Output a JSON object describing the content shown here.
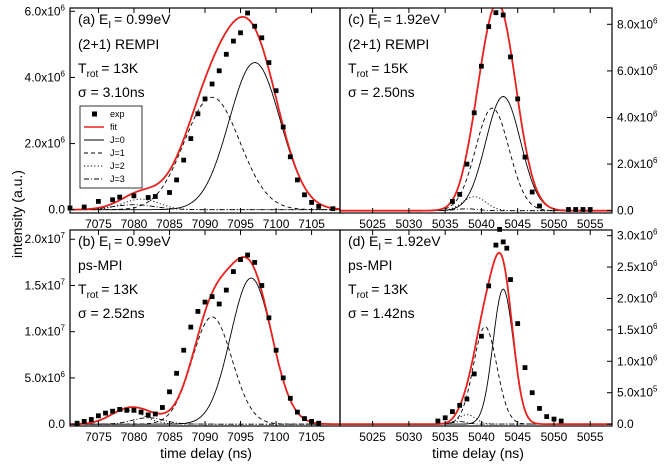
{
  "figure": {
    "xlabel": "time delay (ns)",
    "ylabel": "intensity (a.u.)"
  },
  "legend": {
    "items": [
      {
        "label": "exp",
        "style": "square"
      },
      {
        "label": "fit",
        "style": "red"
      },
      {
        "label": "J=0",
        "style": "solid"
      },
      {
        "label": "J=1",
        "style": "dash"
      },
      {
        "label": "J=2",
        "style": "dot"
      },
      {
        "label": "J=3",
        "style": "dashdot"
      }
    ]
  },
  "colors": {
    "fit": "#e8211d",
    "component": "#000000",
    "exp": "#000000"
  },
  "chart_data": [
    {
      "type": "scatter",
      "panel": "a",
      "annotations": [
        "(a) E",
        "= 0.99eV",
        "(2+1) REMPI",
        "T",
        "= 13K",
        "σ = 3.10ns"
      ],
      "subscripts": [
        "I",
        "rot"
      ],
      "xlim": [
        7071,
        7109
      ],
      "ylim": [
        -100000,
        6100000
      ],
      "xticks": [
        7075,
        7080,
        7085,
        7090,
        7095,
        7100,
        7105
      ],
      "xtick_labels": [
        "7075",
        "7080",
        "7085",
        "7090",
        "7095",
        "7100",
        "7105"
      ],
      "yticks": [
        0,
        2000000,
        4000000,
        6000000
      ],
      "ytick_labels": [
        "0.0",
        "2.0x10",
        "4.0x10",
        "6.0x10"
      ],
      "ytick_exp": [
        "",
        "6",
        "6",
        "6"
      ],
      "yaxis_side": "left",
      "show_x_labels": false,
      "legend": true,
      "components": [
        {
          "name": "J=0",
          "style": "solid",
          "mu": 7097.0,
          "sigma": 3.6,
          "amp": 4450000
        },
        {
          "name": "J=1",
          "style": "dash",
          "mu": 7091.0,
          "sigma": 3.9,
          "amp": 3400000
        },
        {
          "name": "J=2",
          "style": "dot",
          "mu": 7081.0,
          "sigma": 2.5,
          "amp": 320000
        },
        {
          "name": "J=3",
          "style": "dashdot",
          "mu": 7080.0,
          "sigma": 3.0,
          "amp": 150000
        }
      ],
      "exp_x": [
        7071,
        7073,
        7075,
        7077,
        7078,
        7080,
        7082,
        7083,
        7085,
        7086,
        7087,
        7088,
        7089,
        7090,
        7091,
        7092,
        7093,
        7094,
        7095,
        7096,
        7097,
        7098,
        7099,
        7100,
        7101,
        7102,
        7103,
        7104,
        7105,
        7106,
        7108
      ],
      "exp_y": [
        50000,
        80000,
        250000,
        300000,
        380000,
        420000,
        370000,
        400000,
        520000,
        900000,
        1500000,
        2150000,
        2900000,
        3350000,
        3800000,
        4200000,
        4700000,
        5100000,
        5350000,
        5950000,
        5550000,
        5200000,
        4450000,
        3600000,
        2500000,
        1600000,
        900000,
        450000,
        220000,
        100000,
        30000
      ]
    },
    {
      "type": "scatter",
      "panel": "b",
      "annotations": [
        "(b) E",
        "= 0.99eV",
        "ps-MPI",
        "T",
        "= 13K",
        "σ = 2.52ns"
      ],
      "subscripts": [
        "I",
        "rot"
      ],
      "xlim": [
        7071,
        7109
      ],
      "ylim": [
        -200000,
        21000000
      ],
      "xticks": [
        7075,
        7080,
        7085,
        7090,
        7095,
        7100,
        7105
      ],
      "xtick_labels": [
        "7075",
        "7080",
        "7085",
        "7090",
        "7095",
        "7100",
        "7105"
      ],
      "yticks": [
        0,
        5000000,
        10000000,
        15000000,
        20000000
      ],
      "ytick_labels": [
        "0.0",
        "5.0x10",
        "1.0x10",
        "1.5x10",
        "2.0x10"
      ],
      "ytick_exp": [
        "",
        "6",
        "7",
        "7",
        "7"
      ],
      "yaxis_side": "left",
      "show_x_labels": true,
      "legend": false,
      "components": [
        {
          "name": "J=0",
          "style": "solid",
          "mu": 7096.5,
          "sigma": 2.9,
          "amp": 15800000
        },
        {
          "name": "J=1",
          "style": "dash",
          "mu": 7091.0,
          "sigma": 2.8,
          "amp": 11600000
        },
        {
          "name": "J=2",
          "style": "dot",
          "mu": 7079.0,
          "sigma": 2.4,
          "amp": 1500000
        },
        {
          "name": "J=3",
          "style": "dashdot",
          "mu": 7082.0,
          "sigma": 2.2,
          "amp": 700000
        }
      ],
      "exp_x": [
        7072,
        7073,
        7074,
        7075,
        7076,
        7077,
        7078,
        7079,
        7080,
        7081,
        7082,
        7083,
        7084,
        7085,
        7086,
        7087,
        7088,
        7089,
        7090,
        7091,
        7092,
        7093,
        7094,
        7095,
        7096,
        7097,
        7098,
        7099,
        7100,
        7101,
        7102,
        7103,
        7104,
        7105,
        7106
      ],
      "exp_y": [
        100000,
        300000,
        500000,
        900000,
        1200000,
        1400000,
        1600000,
        1500000,
        1500000,
        1300000,
        1000000,
        1100000,
        1800000,
        3500000,
        5500000,
        8000000,
        10500000,
        12200000,
        13200000,
        13800000,
        13000000,
        14500000,
        16500000,
        17800000,
        18300000,
        17500000,
        15000000,
        11500000,
        8000000,
        5000000,
        2800000,
        1300000,
        600000,
        300000,
        100000
      ]
    },
    {
      "type": "scatter",
      "panel": "c",
      "annotations": [
        "(c) E",
        "= 1.92eV",
        "(2+1) REMPI",
        "T",
        "= 15K",
        "σ = 2.50ns"
      ],
      "subscripts": [
        "I",
        "rot"
      ],
      "xlim": [
        5020.5,
        5058
      ],
      "ylim": [
        -100000,
        8700000
      ],
      "xticks": [
        5025,
        5030,
        5035,
        5040,
        5045,
        5050,
        5055
      ],
      "xtick_labels": [
        "5025",
        "5030",
        "5035",
        "5040",
        "5045",
        "5050",
        "5055"
      ],
      "yticks": [
        0,
        2000000,
        4000000,
        6000000,
        8000000
      ],
      "ytick_labels": [
        "0.0",
        "2.0x10",
        "4.0x10",
        "6.0x10",
        "8.0x10"
      ],
      "ytick_exp": [
        "",
        "6",
        "6",
        "6",
        "6"
      ],
      "yaxis_side": "right",
      "show_x_labels": false,
      "legend": false,
      "components": [
        {
          "name": "J=0",
          "style": "solid",
          "mu": 5043.0,
          "sigma": 2.4,
          "amp": 4900000
        },
        {
          "name": "J=1",
          "style": "dash",
          "mu": 5041.5,
          "sigma": 2.3,
          "amp": 4400000
        },
        {
          "name": "J=2",
          "style": "dot",
          "mu": 5039.0,
          "sigma": 1.6,
          "amp": 600000
        },
        {
          "name": "J=3",
          "style": "dashdot",
          "mu": 5038.0,
          "sigma": 1.5,
          "amp": 80000
        }
      ],
      "exp_x": [
        5036,
        5037,
        5038,
        5039,
        5040,
        5041,
        5042,
        5043,
        5044,
        5045,
        5046,
        5047,
        5048,
        5052,
        5053,
        5054,
        5055
      ],
      "exp_y": [
        400000,
        700000,
        2000000,
        4200000,
        6200000,
        7900000,
        8500000,
        8400000,
        6600000,
        4800000,
        2300000,
        800000,
        200000,
        50000,
        50000,
        50000,
        50000
      ]
    },
    {
      "type": "scatter",
      "panel": "d",
      "annotations": [
        "(d) E",
        "= 1.92eV",
        "ps-MPI",
        "T",
        "= 13K",
        "σ = 1.42ns"
      ],
      "subscripts": [
        "I",
        "rot"
      ],
      "xlim": [
        5020.5,
        5058
      ],
      "ylim": [
        -30000,
        3090000
      ],
      "xticks": [
        5025,
        5030,
        5035,
        5040,
        5045,
        5050,
        5055
      ],
      "xtick_labels": [
        "5025",
        "5030",
        "5035",
        "5040",
        "5045",
        "5050",
        "5055"
      ],
      "yticks": [
        0,
        500000,
        1000000,
        1500000,
        2000000,
        2500000,
        3000000
      ],
      "ytick_labels": [
        "0.0",
        "5.0x10",
        "1.0x10",
        "1.5x10",
        "2.0x10",
        "2.5x10",
        "3.0x10"
      ],
      "ytick_exp": [
        "",
        "5",
        "6",
        "6",
        "6",
        "6",
        "6"
      ],
      "yaxis_side": "right",
      "show_x_labels": true,
      "legend": false,
      "components": [
        {
          "name": "J=0",
          "style": "solid",
          "mu": 5043.0,
          "sigma": 1.4,
          "amp": 2150000
        },
        {
          "name": "J=1",
          "style": "dash",
          "mu": 5040.5,
          "sigma": 1.6,
          "amp": 1550000
        },
        {
          "name": "J=2",
          "style": "dot",
          "mu": 5038.0,
          "sigma": 1.2,
          "amp": 150000
        },
        {
          "name": "J=3",
          "style": "dashdot",
          "mu": 5037.0,
          "sigma": 1.0,
          "amp": 40000
        }
      ],
      "exp_x": [
        5034,
        5035,
        5036,
        5037,
        5038,
        5039,
        5040,
        5041,
        5042,
        5042.5,
        5043,
        5043.5,
        5044,
        5045,
        5046,
        5047,
        5048,
        5049,
        5050,
        5051
      ],
      "exp_y": [
        50000,
        100000,
        200000,
        300000,
        400000,
        800000,
        1400000,
        2200000,
        2850000,
        3100000,
        2900000,
        2800000,
        2300000,
        1600000,
        900000,
        500000,
        250000,
        120000,
        80000,
        50000
      ]
    }
  ]
}
